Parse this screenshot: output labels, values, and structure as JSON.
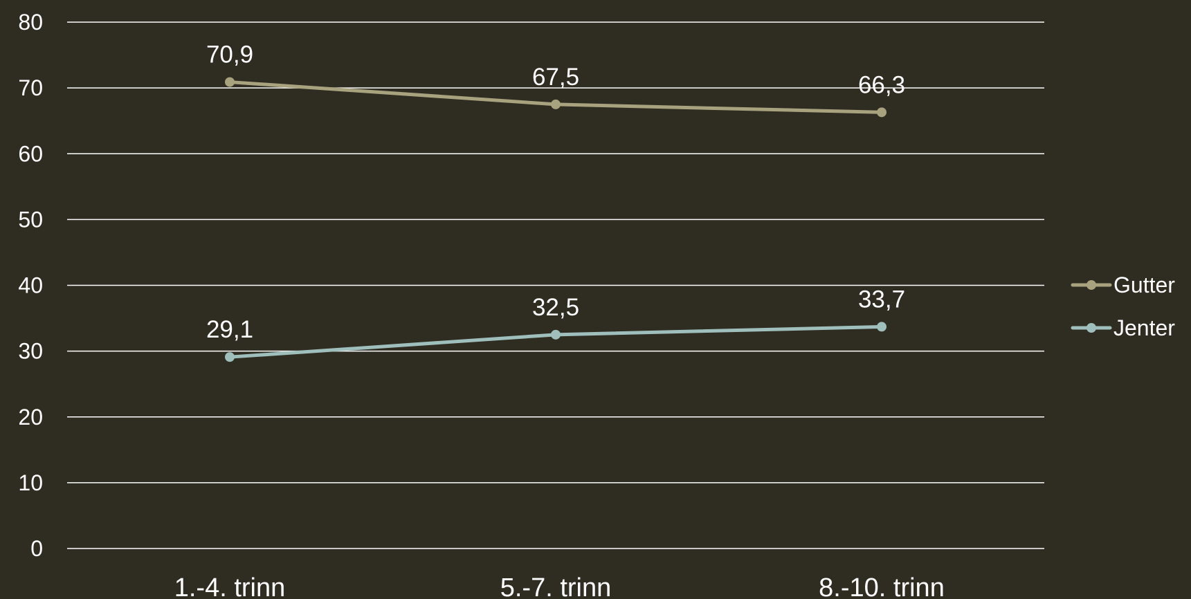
{
  "chart_data": {
    "type": "line",
    "categories": [
      "1.-4. trinn",
      "5.-7. trinn",
      "8.-10. trinn"
    ],
    "series": [
      {
        "name": "Gutter",
        "values": [
          70.9,
          67.5,
          66.3
        ],
        "labels": [
          "70,9",
          "67,5",
          "66,3"
        ],
        "color": "#a8a27e"
      },
      {
        "name": "Jenter",
        "values": [
          29.1,
          32.5,
          33.7
        ],
        "labels": [
          "29,1",
          "32,5",
          "33,7"
        ],
        "color": "#9fbfbd"
      }
    ],
    "yticks": [
      0,
      10,
      20,
      30,
      40,
      50,
      60,
      70,
      80
    ],
    "ylim": [
      0,
      80
    ],
    "grid": true,
    "legend_position": "right",
    "background_color": "#2f2c22",
    "grid_color": "#ffffff",
    "text_color": "#ffffff"
  }
}
